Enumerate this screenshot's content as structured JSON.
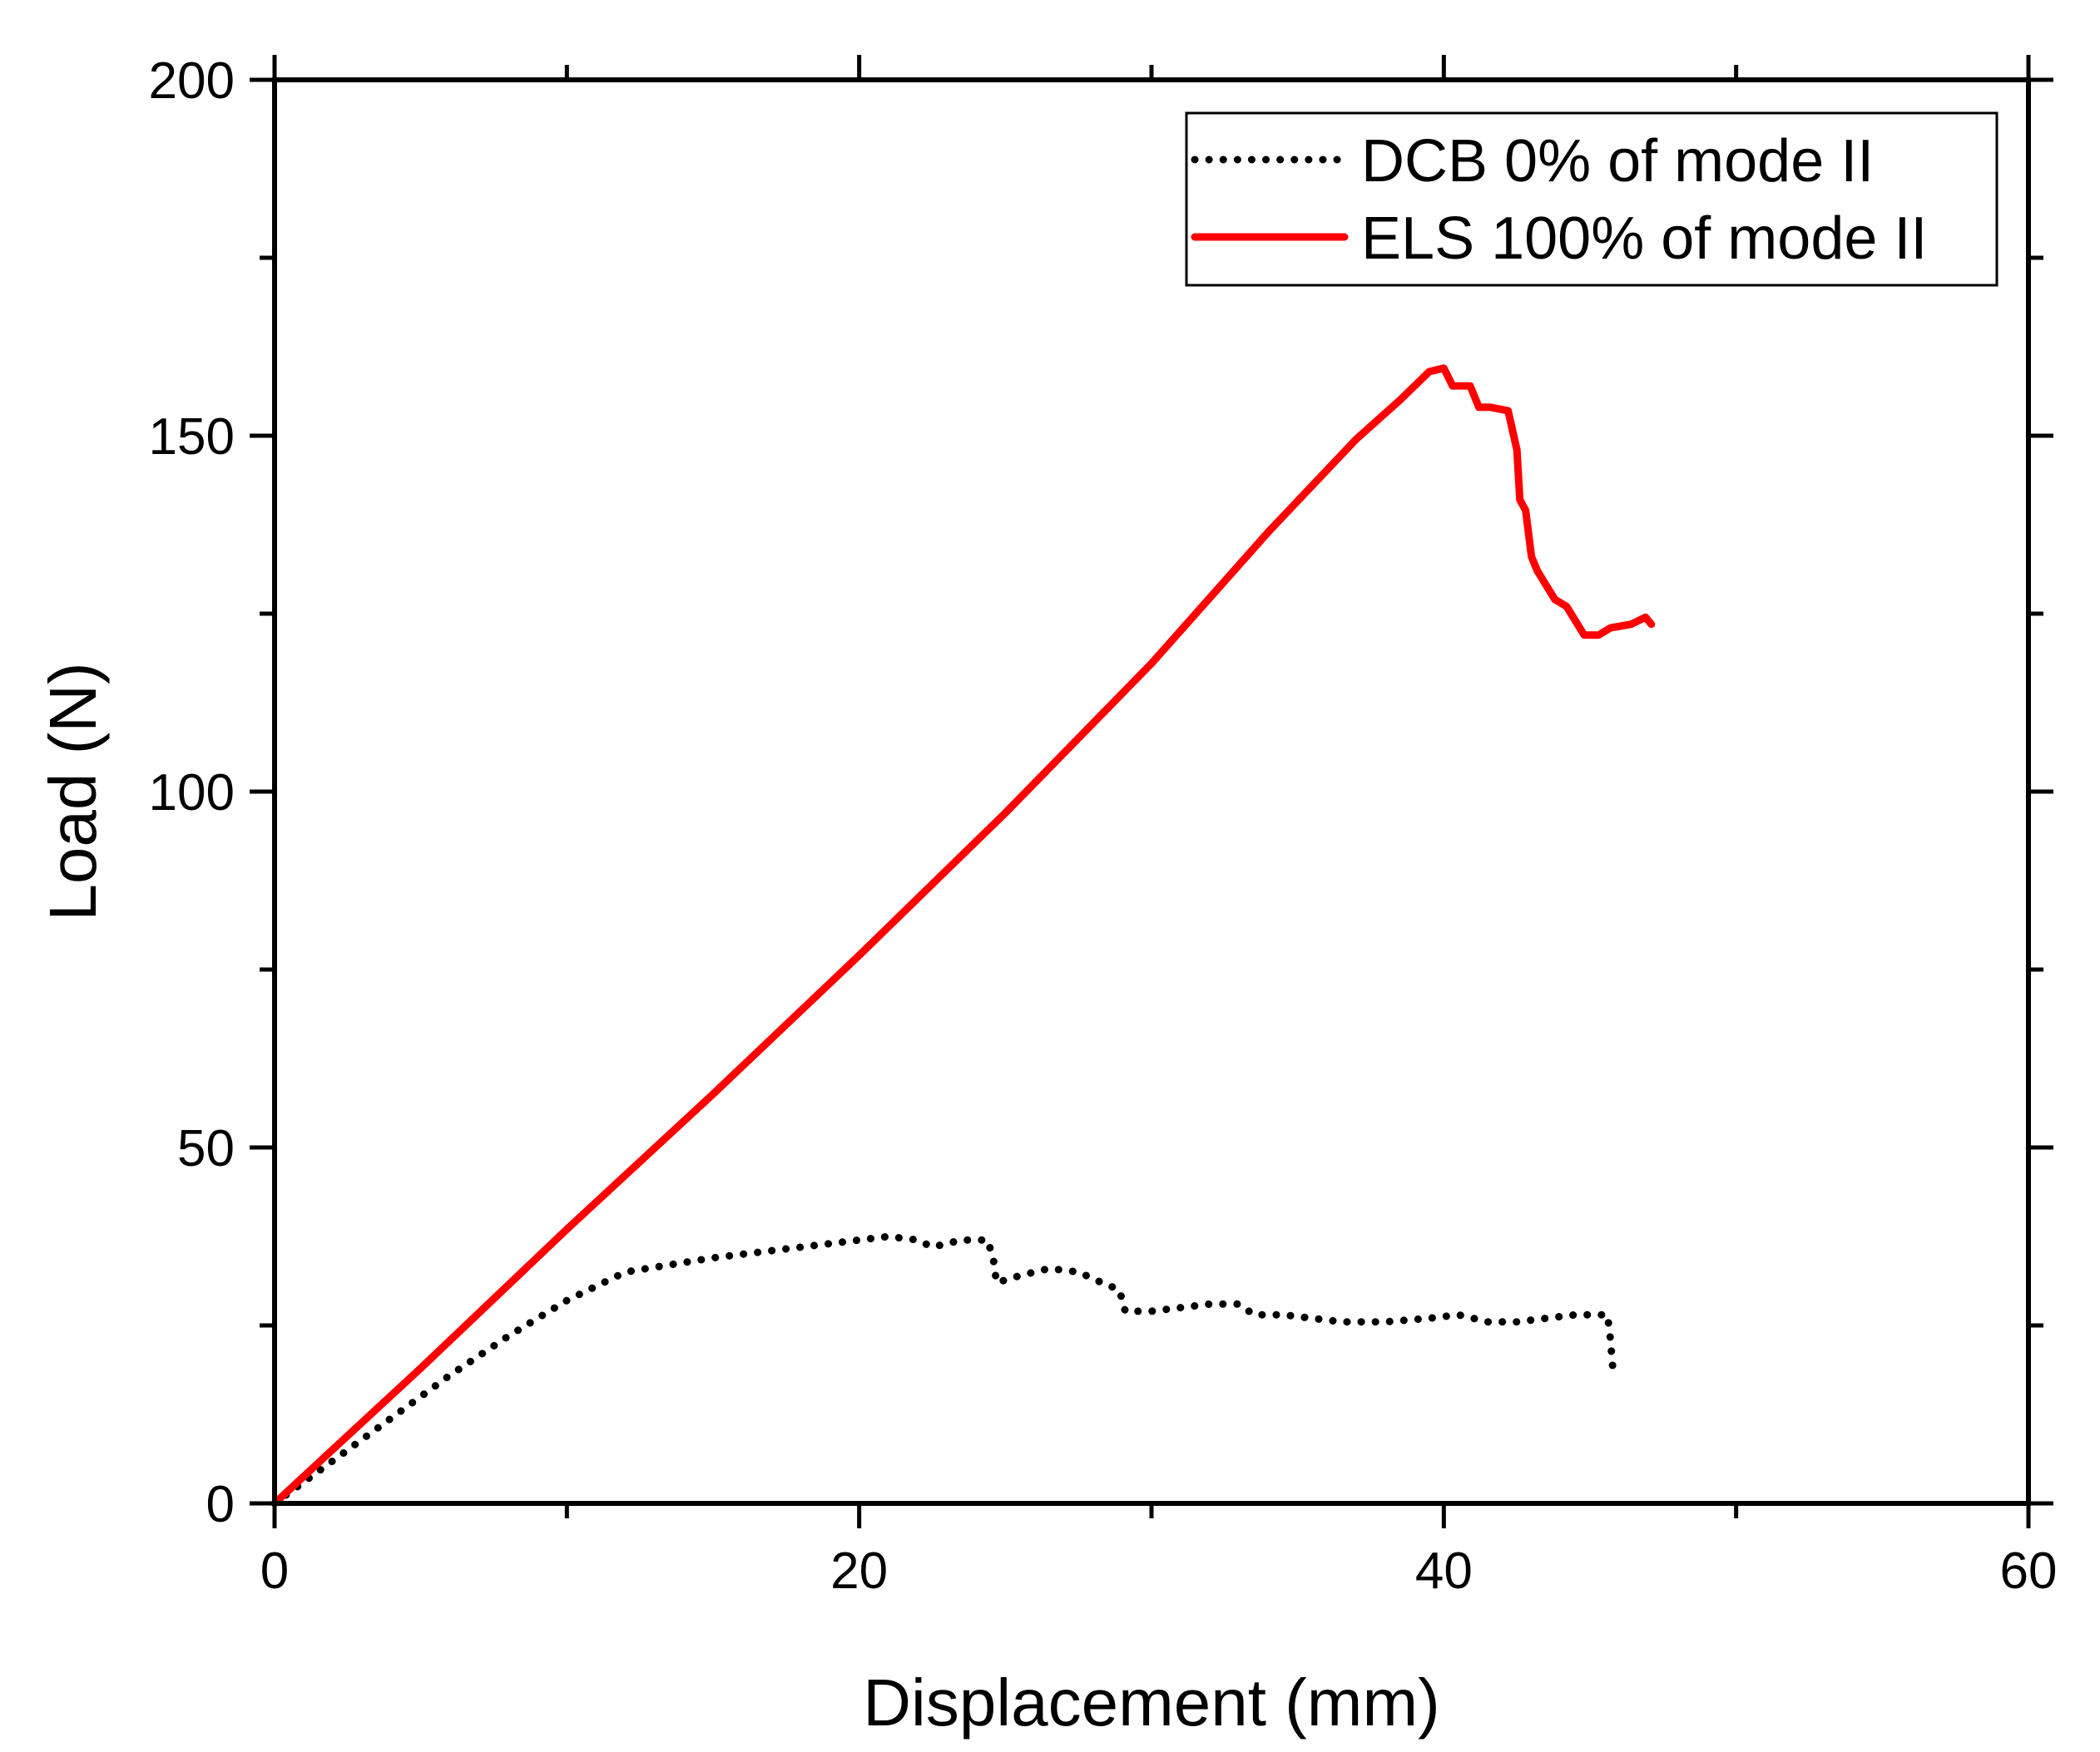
{
  "chart_data": {
    "type": "line",
    "title": "",
    "xlabel": "Displacement (mm)",
    "ylabel": "Load (N)",
    "xlim": [
      0,
      60
    ],
    "ylim": [
      0,
      200
    ],
    "x_ticks": [
      0,
      20,
      40,
      60
    ],
    "x_minor_ticks": [
      10,
      30,
      50
    ],
    "y_ticks": [
      0,
      50,
      100,
      150,
      200
    ],
    "y_minor_ticks": [
      25,
      75,
      125,
      175
    ],
    "grid": false,
    "legend_position": "top-right",
    "series": [
      {
        "name": "DCB 0% of mode II",
        "style": "dotted",
        "color": "#000000",
        "x": [
          0,
          2,
          4,
          6,
          8,
          10,
          12,
          13.5,
          15,
          17,
          19,
          21,
          22,
          22.5,
          23.5,
          24.4,
          24.6,
          24.7,
          25.5,
          26.5,
          27.5,
          28.3,
          28.9,
          29.1,
          30,
          31,
          32,
          33,
          33.5,
          34.5,
          35.5,
          36.5,
          38,
          39.5,
          40.5,
          41,
          41.5,
          42.5,
          43.5,
          44.5,
          45.6,
          45.7,
          45.8
        ],
        "y": [
          0,
          6,
          12,
          18,
          23.5,
          28.5,
          32.5,
          33.5,
          34.5,
          35.5,
          36.5,
          37.5,
          37,
          36,
          37,
          37,
          34,
          31,
          32,
          33,
          32.5,
          31,
          30,
          27,
          27,
          27.5,
          28,
          28,
          26.5,
          26.5,
          26,
          25.5,
          25.5,
          26,
          26.5,
          26,
          25.5,
          25.5,
          26,
          26.5,
          26.5,
          23,
          18
        ]
      },
      {
        "name": "ELS 100% of mode II",
        "style": "solid",
        "color": "#ff0000",
        "x": [
          0,
          5,
          10,
          15,
          20,
          25,
          30,
          34,
          37,
          38.5,
          39.5,
          40,
          40.3,
          40.9,
          41.2,
          41.6,
          42.2,
          42.5,
          42.6,
          42.8,
          43.0,
          43.2,
          43.5,
          43.8,
          44.2,
          44.8,
          45.3,
          45.7,
          46.4,
          46.9,
          47.1
        ],
        "y": [
          0,
          19,
          38.5,
          57.5,
          77,
          97,
          118,
          136.5,
          149.5,
          155,
          159,
          159.5,
          157,
          157,
          154,
          154,
          153.5,
          148,
          141,
          139.5,
          133,
          131,
          129,
          127,
          126,
          122,
          122,
          123,
          123.5,
          124.5,
          123.5
        ]
      }
    ]
  }
}
